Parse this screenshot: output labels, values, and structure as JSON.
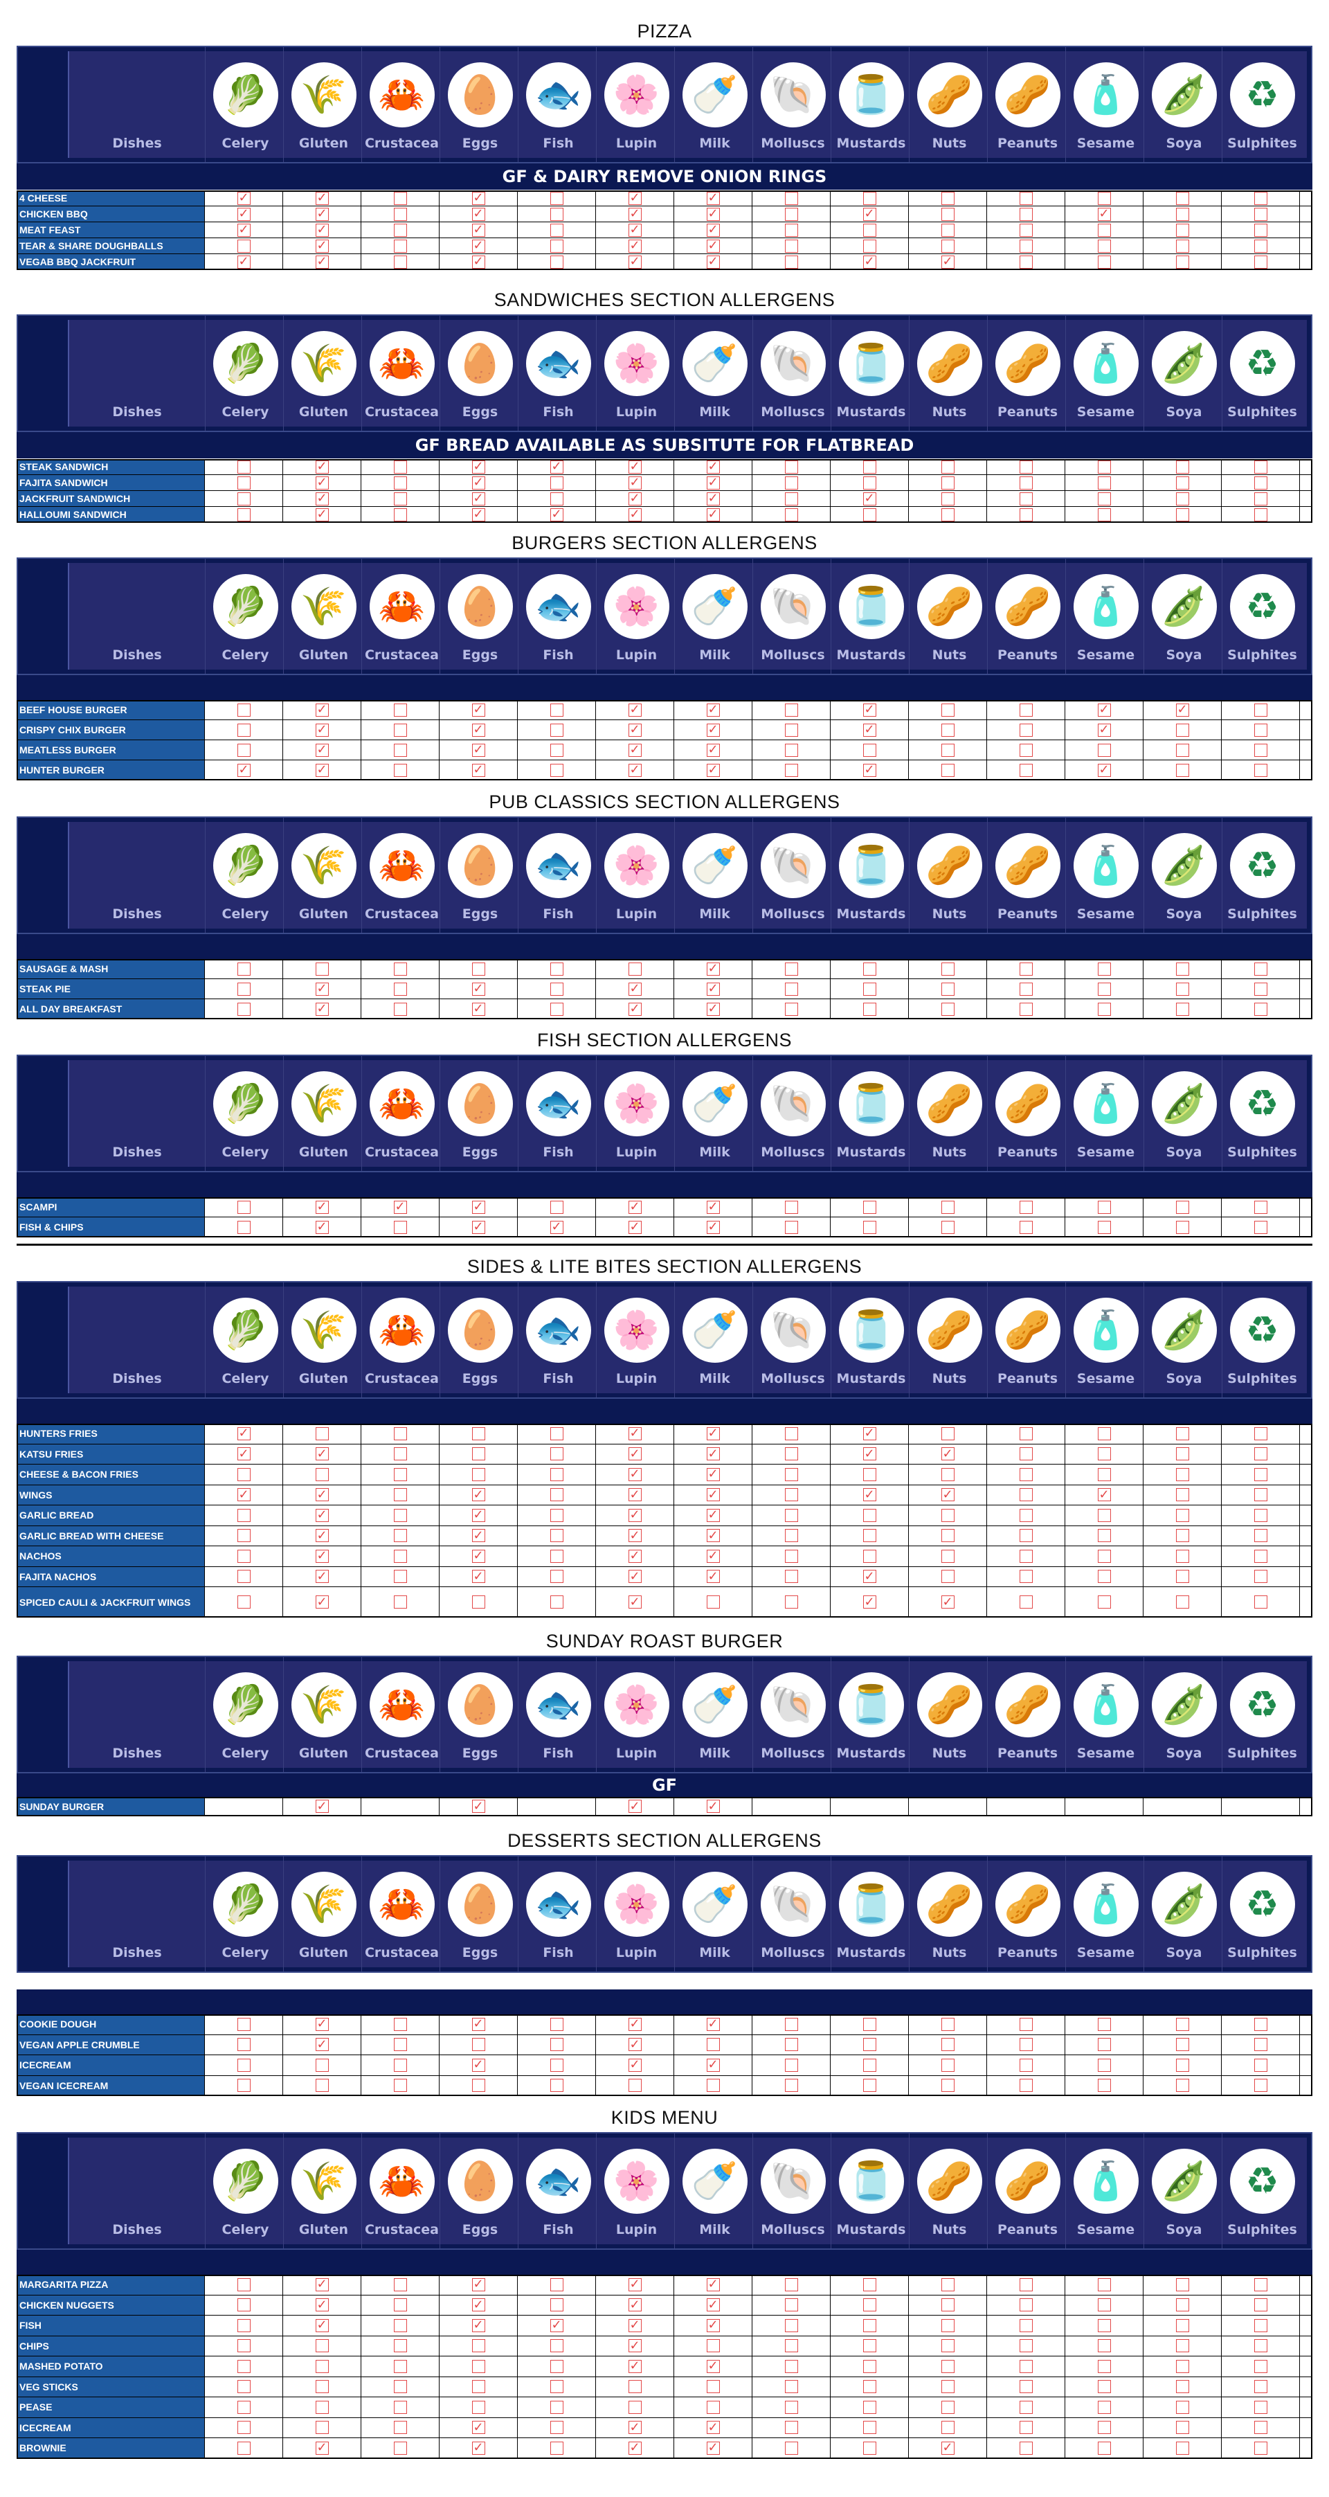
{
  "allergens": [
    {
      "label": "Celery",
      "icon": "celery-icon",
      "glyph": "🥬",
      "color": "#39b54a"
    },
    {
      "label": "Gluten",
      "icon": "gluten-wheat-icon",
      "glyph": "🌾",
      "color": "#f1a72b"
    },
    {
      "label": "Crustacea",
      "icon": "crustacea-crab-icon",
      "glyph": "🦀",
      "color": "#e0393e"
    },
    {
      "label": "Eggs",
      "icon": "eggs-icon",
      "glyph": "🥚",
      "color": "#f5c342"
    },
    {
      "label": "Fish",
      "icon": "fish-icon",
      "glyph": "🐟",
      "color": "#555"
    },
    {
      "label": "Lupin",
      "icon": "lupin-flower-icon",
      "glyph": "🌸",
      "color": "#3b5cc4"
    },
    {
      "label": "Milk",
      "icon": "milk-bottle-icon",
      "glyph": "🍼",
      "color": "#3b5cc4"
    },
    {
      "label": "Molluscs",
      "icon": "molluscs-shell-icon",
      "glyph": "🐚",
      "color": "#c0272d"
    },
    {
      "label": "Mustards",
      "icon": "mustard-jar-icon",
      "glyph": "🫙",
      "color": "#d9a23b"
    },
    {
      "label": "Nuts",
      "icon": "nuts-icon",
      "glyph": "🥜",
      "color": "#8a5a2b"
    },
    {
      "label": "Peanuts",
      "icon": "peanuts-icon",
      "glyph": "🥜",
      "color": "#a0522d"
    },
    {
      "label": "Sesame",
      "icon": "sesame-icon",
      "glyph": "🧴",
      "color": "#f0a830"
    },
    {
      "label": "Soya",
      "icon": "soya-bean-icon",
      "glyph": "🫛",
      "color": "#39b54a"
    },
    {
      "label": "Sulphites",
      "icon": "sulphites-icon",
      "glyph": "♻",
      "color": "#1f8a4c"
    }
  ],
  "dishes_label": "Dishes",
  "sections": [
    {
      "title": "PIZZA",
      "band": "GF & DAIRY REMOVE ONION RINGS",
      "rows": [
        {
          "dish": "4 CHEESE",
          "checks": [
            1,
            1,
            0,
            1,
            0,
            1,
            1,
            0,
            0,
            0,
            0,
            0,
            0,
            0
          ]
        },
        {
          "dish": "CHICKEN BBQ",
          "checks": [
            1,
            1,
            0,
            1,
            0,
            1,
            1,
            0,
            1,
            0,
            0,
            1,
            0,
            0
          ]
        },
        {
          "dish": "MEAT FEAST",
          "checks": [
            1,
            1,
            0,
            1,
            0,
            1,
            1,
            0,
            0,
            0,
            0,
            0,
            0,
            0
          ]
        },
        {
          "dish": "TEAR & SHARE DOUGHBALLS",
          "checks": [
            0,
            1,
            0,
            1,
            0,
            1,
            1,
            0,
            0,
            0,
            0,
            0,
            0,
            0
          ]
        },
        {
          "dish": "VEGAB BBQ JACKFRUIT",
          "checks": [
            1,
            1,
            0,
            1,
            0,
            1,
            1,
            0,
            1,
            1,
            0,
            0,
            0,
            0
          ]
        }
      ]
    },
    {
      "title": "SANDWICHES SECTION ALLERGENS",
      "band": "GF BREAD AVAILABLE AS SUBSITUTE FOR FLATBREAD",
      "rows": [
        {
          "dish": "STEAK SANDWICH",
          "checks": [
            0,
            1,
            0,
            1,
            1,
            1,
            1,
            0,
            0,
            0,
            0,
            0,
            0,
            0
          ]
        },
        {
          "dish": "FAJITA SANDWICH",
          "checks": [
            0,
            1,
            0,
            1,
            0,
            1,
            1,
            0,
            0,
            0,
            0,
            0,
            0,
            0
          ]
        },
        {
          "dish": "JACKFRUIT SANDWICH",
          "checks": [
            0,
            1,
            0,
            1,
            0,
            1,
            1,
            0,
            1,
            0,
            0,
            0,
            0,
            0
          ]
        },
        {
          "dish": "HALLOUMI SANDWICH",
          "checks": [
            0,
            1,
            0,
            1,
            1,
            1,
            1,
            0,
            0,
            0,
            0,
            0,
            0,
            0
          ]
        }
      ]
    },
    {
      "title": "BURGERS SECTION ALLERGENS",
      "band": "",
      "rows": [
        {
          "dish": "BEEF HOUSE BURGER",
          "checks": [
            0,
            1,
            0,
            1,
            0,
            1,
            1,
            0,
            1,
            0,
            0,
            1,
            1,
            0
          ]
        },
        {
          "dish": "CRISPY CHIX BURGER",
          "checks": [
            0,
            1,
            0,
            1,
            0,
            1,
            1,
            0,
            1,
            0,
            0,
            1,
            0,
            0
          ]
        },
        {
          "dish": "MEATLESS BURGER",
          "checks": [
            0,
            1,
            0,
            1,
            0,
            1,
            1,
            0,
            0,
            0,
            0,
            0,
            0,
            0
          ]
        },
        {
          "dish": "HUNTER BURGER",
          "checks": [
            1,
            1,
            0,
            1,
            0,
            1,
            1,
            0,
            1,
            0,
            0,
            1,
            0,
            0
          ]
        }
      ]
    },
    {
      "title": "PUB CLASSICS SECTION ALLERGENS",
      "band": "",
      "rows": [
        {
          "dish": "SAUSAGE & MASH",
          "checks": [
            0,
            0,
            0,
            0,
            0,
            0,
            1,
            0,
            0,
            0,
            0,
            0,
            0,
            0
          ]
        },
        {
          "dish": "STEAK PIE",
          "checks": [
            0,
            1,
            0,
            1,
            0,
            1,
            1,
            0,
            0,
            0,
            0,
            0,
            0,
            0
          ]
        },
        {
          "dish": "ALL DAY BREAKFAST",
          "checks": [
            0,
            1,
            0,
            1,
            0,
            1,
            1,
            0,
            0,
            0,
            0,
            0,
            0,
            0
          ]
        }
      ]
    },
    {
      "title": "FISH SECTION ALLERGENS",
      "band": "",
      "rows": [
        {
          "dish": "SCAMPI",
          "checks": [
            0,
            1,
            1,
            1,
            0,
            1,
            1,
            0,
            0,
            0,
            0,
            0,
            0,
            0
          ]
        },
        {
          "dish": "FISH & CHIPS",
          "checks": [
            0,
            1,
            0,
            1,
            1,
            1,
            1,
            0,
            0,
            0,
            0,
            0,
            0,
            0
          ]
        }
      ]
    },
    {
      "title": "SIDES & LITE BITES SECTION ALLERGENS",
      "band": "",
      "rows": [
        {
          "dish": "HUNTERS FRIES",
          "checks": [
            1,
            0,
            0,
            0,
            0,
            1,
            1,
            0,
            1,
            0,
            0,
            0,
            0,
            0
          ]
        },
        {
          "dish": "KATSU FRIES",
          "checks": [
            1,
            1,
            0,
            0,
            0,
            1,
            1,
            0,
            1,
            1,
            0,
            0,
            0,
            0
          ]
        },
        {
          "dish": "CHEESE & BACON FRIES",
          "checks": [
            0,
            0,
            0,
            0,
            0,
            1,
            1,
            0,
            0,
            0,
            0,
            0,
            0,
            0
          ]
        },
        {
          "dish": "WINGS",
          "checks": [
            1,
            1,
            0,
            1,
            0,
            1,
            1,
            0,
            1,
            1,
            0,
            1,
            0,
            0
          ]
        },
        {
          "dish": "GARLIC BREAD",
          "checks": [
            0,
            1,
            0,
            1,
            0,
            1,
            1,
            0,
            0,
            0,
            0,
            0,
            0,
            0
          ]
        },
        {
          "dish": "GARLIC BREAD WITH CHEESE",
          "checks": [
            0,
            1,
            0,
            1,
            0,
            1,
            1,
            0,
            0,
            0,
            0,
            0,
            0,
            0
          ]
        },
        {
          "dish": "NACHOS",
          "checks": [
            0,
            1,
            0,
            1,
            0,
            1,
            1,
            0,
            0,
            0,
            0,
            0,
            0,
            0
          ]
        },
        {
          "dish": "FAJITA NACHOS",
          "checks": [
            0,
            1,
            0,
            1,
            0,
            1,
            1,
            0,
            1,
            0,
            0,
            0,
            0,
            0
          ]
        },
        {
          "dish": "SPICED CAULI & JACKFRUIT WINGS",
          "checks": [
            0,
            1,
            0,
            0,
            0,
            1,
            0,
            0,
            1,
            1,
            0,
            0,
            0,
            0
          ]
        }
      ]
    },
    {
      "title": "SUNDAY ROAST BURGER",
      "band": "GF",
      "rows": [
        {
          "dish": "SUNDAY BURGER",
          "checks": [
            0,
            1,
            0,
            1,
            0,
            1,
            1,
            0,
            0,
            0,
            0,
            0,
            0,
            0
          ],
          "noboxes": true
        }
      ]
    },
    {
      "title": "DESSERTS SECTION ALLERGENS",
      "band": "",
      "rows": [
        {
          "dish": "COOKIE DOUGH",
          "checks": [
            0,
            1,
            0,
            1,
            0,
            1,
            1,
            0,
            0,
            0,
            0,
            0,
            0,
            0
          ]
        },
        {
          "dish": "VEGAN APPLE CRUMBLE",
          "checks": [
            0,
            1,
            0,
            0,
            0,
            1,
            0,
            0,
            0,
            0,
            0,
            0,
            0,
            0
          ]
        },
        {
          "dish": "ICECREAM",
          "checks": [
            0,
            0,
            0,
            1,
            0,
            1,
            1,
            0,
            0,
            0,
            0,
            0,
            0,
            0
          ]
        },
        {
          "dish": "VEGAN ICECREAM",
          "checks": [
            0,
            0,
            0,
            0,
            0,
            0,
            0,
            0,
            0,
            0,
            0,
            0,
            0,
            0
          ]
        }
      ]
    },
    {
      "title": "KIDS MENU",
      "band": "",
      "rows": [
        {
          "dish": "MARGARITA PIZZA",
          "checks": [
            0,
            1,
            0,
            1,
            0,
            1,
            1,
            0,
            0,
            0,
            0,
            0,
            0,
            0
          ]
        },
        {
          "dish": "CHICKEN NUGGETS",
          "checks": [
            0,
            1,
            0,
            1,
            0,
            1,
            1,
            0,
            0,
            0,
            0,
            0,
            0,
            0
          ]
        },
        {
          "dish": "FISH",
          "checks": [
            0,
            1,
            0,
            1,
            1,
            1,
            1,
            0,
            0,
            0,
            0,
            0,
            0,
            0
          ]
        },
        {
          "dish": "CHIPS",
          "checks": [
            0,
            0,
            0,
            0,
            0,
            1,
            0,
            0,
            0,
            0,
            0,
            0,
            0,
            0
          ]
        },
        {
          "dish": "MASHED POTATO",
          "checks": [
            0,
            0,
            0,
            0,
            0,
            1,
            1,
            0,
            0,
            0,
            0,
            0,
            0,
            0
          ]
        },
        {
          "dish": "VEG STICKS",
          "checks": [
            0,
            0,
            0,
            0,
            0,
            0,
            0,
            0,
            0,
            0,
            0,
            0,
            0,
            0
          ]
        },
        {
          "dish": "PEASE",
          "checks": [
            0,
            0,
            0,
            0,
            0,
            0,
            0,
            0,
            0,
            0,
            0,
            0,
            0,
            0
          ]
        },
        {
          "dish": "ICECREAM",
          "checks": [
            0,
            0,
            0,
            1,
            0,
            1,
            1,
            0,
            0,
            0,
            0,
            0,
            0,
            0
          ]
        },
        {
          "dish": "BROWNIE",
          "checks": [
            0,
            1,
            0,
            1,
            0,
            1,
            1,
            0,
            0,
            1,
            0,
            0,
            0,
            0
          ]
        }
      ]
    }
  ]
}
